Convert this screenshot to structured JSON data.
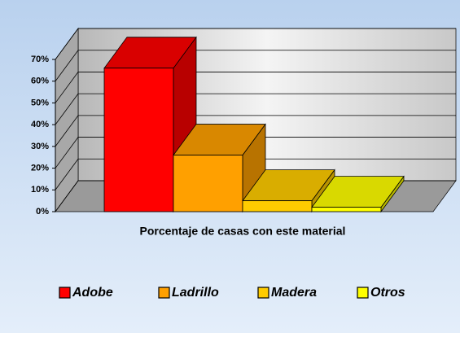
{
  "chart_data": {
    "type": "bar3d",
    "categories": [
      "Adobe",
      "Ladrillo",
      "Madera",
      "Otros"
    ],
    "values": [
      66,
      26,
      5,
      2
    ],
    "colors": [
      "#ff0000",
      "#ffa000",
      "#ffcc00",
      "#ffff00"
    ],
    "xlabel": "Porcentaje de casas con este material",
    "ylim": [
      0,
      70
    ],
    "yticks": [
      {
        "value": 0,
        "label": "0%"
      },
      {
        "value": 10,
        "label": "10%"
      },
      {
        "value": 20,
        "label": "20%"
      },
      {
        "value": 30,
        "label": "30%"
      },
      {
        "value": 40,
        "label": "40%"
      },
      {
        "value": 50,
        "label": "50%"
      },
      {
        "value": 60,
        "label": "60%"
      },
      {
        "value": 70,
        "label": "70%"
      }
    ],
    "grid": true,
    "legend": "bottom"
  }
}
